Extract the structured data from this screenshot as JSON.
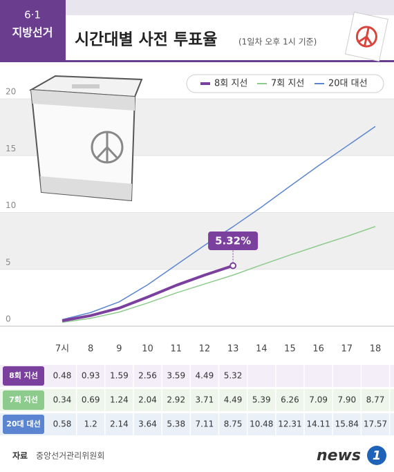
{
  "header": {
    "badge": "6·1",
    "badge_sub": "지방선거",
    "subtitle": "(1일차 오후 1시 기준)"
  },
  "chart_data": {
    "type": "line",
    "title": "시간대별 사전 투표율",
    "categories": [
      "7시",
      "8",
      "9",
      "10",
      "11",
      "12",
      "13",
      "14",
      "15",
      "16",
      "17",
      "18"
    ],
    "series": [
      {
        "name": "8회 지선",
        "color": "#7b3f9e",
        "values": [
          0.48,
          0.93,
          1.59,
          2.56,
          3.59,
          4.49,
          5.32,
          null,
          null,
          null,
          null,
          null
        ]
      },
      {
        "name": "7회 지선",
        "color": "#8ccb8c",
        "values": [
          0.34,
          0.69,
          1.24,
          2.04,
          2.92,
          3.71,
          4.49,
          5.39,
          6.26,
          7.09,
          7.9,
          8.77
        ],
        "value_labels": [
          "0.34",
          "0.69",
          "1.24",
          "2.04",
          "2.92",
          "3.71",
          "4.49",
          "5.39",
          "6.26",
          "7.09",
          "7.90",
          "8.77"
        ]
      },
      {
        "name": "20대 대선",
        "color": "#5b85d0",
        "values": [
          0.58,
          1.2,
          2.14,
          3.64,
          5.38,
          7.11,
          8.75,
          10.48,
          12.31,
          14.11,
          15.84,
          17.57
        ]
      }
    ],
    "annotation": "5.32%",
    "ylim": [
      0,
      20
    ],
    "yticks": [
      0,
      5,
      10,
      15,
      20
    ],
    "grid": true
  },
  "footer": {
    "source_label": "자료",
    "source": "중앙선거관리위원회",
    "logo": "news",
    "logo_num": "1"
  }
}
